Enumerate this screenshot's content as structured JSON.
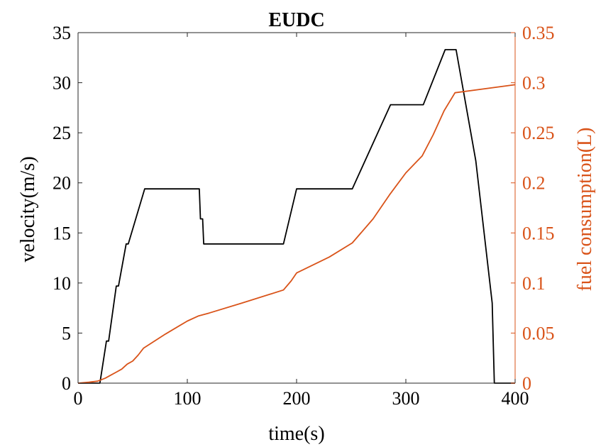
{
  "chart_data": {
    "type": "line",
    "title": "EUDC",
    "xlabel": "time(s)",
    "ylabel_left": "velocity(m/s)",
    "ylabel_right": "fuel consumption(L)",
    "xlim": [
      0,
      400
    ],
    "ylim_left": [
      0,
      35
    ],
    "ylim_right": [
      0,
      0.35
    ],
    "xticks": [
      "0",
      "100",
      "200",
      "300",
      "400"
    ],
    "yticks_left": [
      "0",
      "5",
      "10",
      "15",
      "20",
      "25",
      "30",
      "35"
    ],
    "yticks_right": [
      "0",
      "0.05",
      "0.1",
      "0.15",
      "0.2",
      "0.25",
      "0.3",
      "0.35"
    ],
    "grid": false,
    "colors": {
      "velocity": "#000000",
      "fuel": "#D95319",
      "axes": "#262626"
    },
    "series": [
      {
        "axis": "left",
        "x": [
          0,
          20,
          26,
          28,
          35,
          37,
          44,
          46,
          61,
          111,
          112,
          114,
          115,
          119,
          188,
          200,
          251,
          286,
          316,
          336,
          346,
          364,
          379,
          381,
          400
        ],
        "y": [
          0,
          0,
          4.2,
          4.2,
          9.7,
          9.7,
          13.9,
          13.9,
          19.4,
          19.4,
          16.4,
          16.4,
          13.9,
          13.9,
          13.9,
          19.4,
          19.4,
          27.8,
          27.8,
          33.3,
          33.3,
          22.2,
          8.0,
          0,
          0
        ]
      },
      {
        "axis": "right",
        "x": [
          0,
          10,
          18,
          25,
          30,
          35,
          40,
          45,
          50,
          55,
          60,
          80,
          100,
          110,
          120,
          150,
          188,
          195,
          200,
          230,
          251,
          270,
          285,
          300,
          315,
          325,
          335,
          345,
          400
        ],
        "y": [
          0,
          0.001,
          0.002,
          0.005,
          0.008,
          0.011,
          0.014,
          0.019,
          0.022,
          0.028,
          0.035,
          0.049,
          0.062,
          0.067,
          0.07,
          0.08,
          0.093,
          0.102,
          0.11,
          0.126,
          0.14,
          0.164,
          0.188,
          0.21,
          0.227,
          0.248,
          0.272,
          0.29,
          0.298
        ]
      }
    ]
  }
}
